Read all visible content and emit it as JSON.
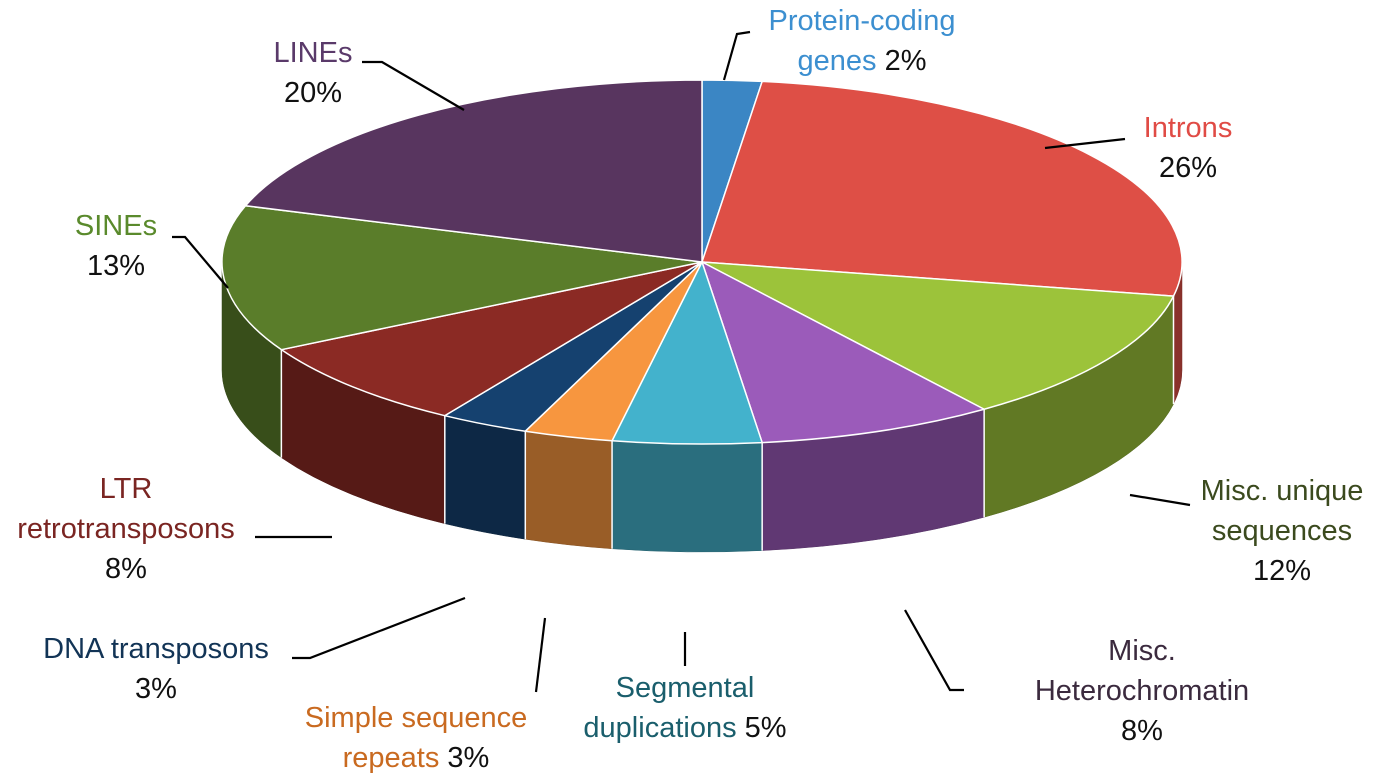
{
  "chart_data": {
    "type": "pie",
    "title": "",
    "slices": [
      {
        "label_lines": [
          "Protein-coding",
          "genes"
        ],
        "pct_text": "2%",
        "value": 2,
        "color": "#3b86c4",
        "text_color": "#3c8fd0"
      },
      {
        "label_lines": [
          "Introns"
        ],
        "pct_text": "26%",
        "value": 26,
        "color": "#de4f46",
        "text_color": "#e04b45"
      },
      {
        "label_lines": [
          "Misc. unique",
          "sequences"
        ],
        "pct_text": "12%",
        "value": 12,
        "color": "#9cc33a",
        "text_color": "#3b4a1e"
      },
      {
        "label_lines": [
          "Misc.",
          "Heterochromatin"
        ],
        "pct_text": "8%",
        "value": 8,
        "color": "#9b5bba",
        "text_color": "#3b2a3e"
      },
      {
        "label_lines": [
          "Segmental",
          "duplications"
        ],
        "pct_text": "5%",
        "value": 5,
        "color": "#43b2cc",
        "text_color": "#1a5e6c"
      },
      {
        "label_lines": [
          "Simple sequence",
          "repeats"
        ],
        "pct_text": "3%",
        "value": 3,
        "color": "#f7963f",
        "text_color": "#c96a20"
      },
      {
        "label_lines": [
          "DNA transposons"
        ],
        "pct_text": "3%",
        "value": 3,
        "color": "#15416f",
        "text_color": "#123456"
      },
      {
        "label_lines": [
          "LTR",
          "retrotransposons"
        ],
        "pct_text": "8%",
        "value": 8,
        "color": "#8b2a24",
        "text_color": "#7a2522"
      },
      {
        "label_lines": [
          "SINEs"
        ],
        "pct_text": "13%",
        "value": 13,
        "color": "#5a7d2a",
        "text_color": "#5a8a2c"
      },
      {
        "label_lines": [
          "LINEs"
        ],
        "pct_text": "20%",
        "value": 20,
        "color": "#58355f",
        "text_color": "#5a3a6a"
      }
    ]
  }
}
